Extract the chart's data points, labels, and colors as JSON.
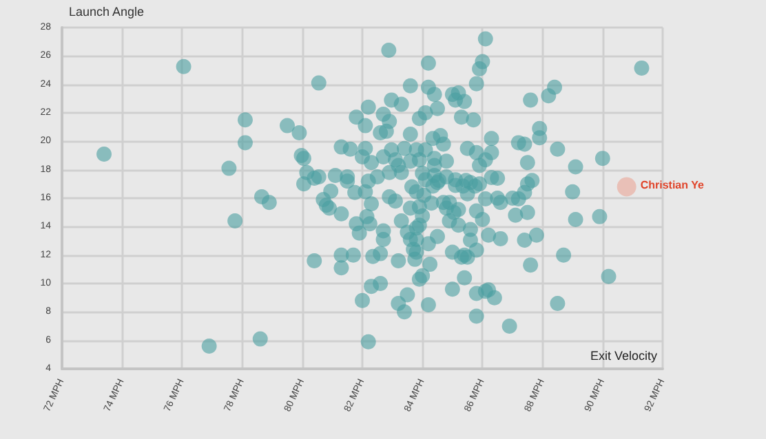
{
  "chart_data": {
    "type": "scatter",
    "xlabel": "Exit Velocity",
    "ylabel": "Launch Angle",
    "xlim": [
      72,
      92
    ],
    "ylim": [
      4,
      28
    ],
    "xticks": [
      {
        "value": 72,
        "label": "72 MPH"
      },
      {
        "value": 74,
        "label": "74 MPH"
      },
      {
        "value": 76,
        "label": "76 MPH"
      },
      {
        "value": 78,
        "label": "78 MPH"
      },
      {
        "value": 80,
        "label": "80 MPH"
      },
      {
        "value": 82,
        "label": "82 MPH"
      },
      {
        "value": 84,
        "label": "84 MPH"
      },
      {
        "value": 86,
        "label": "86 MPH"
      },
      {
        "value": 88,
        "label": "88 MPH"
      },
      {
        "value": 90,
        "label": "90 MPH"
      },
      {
        "value": 92,
        "label": "92 MPH"
      }
    ],
    "yticks": [
      4,
      6,
      8,
      10,
      12,
      14,
      16,
      18,
      20,
      22,
      24,
      26,
      28
    ],
    "grid": true,
    "marker": "circle",
    "annotations": [
      {
        "text": "Christian Ye",
        "x": 90.8,
        "y": 16.8
      }
    ],
    "series": [
      {
        "color": "#4a9fa0",
        "x": [
          73.4,
          76.05,
          77.56,
          77.76,
          78.1,
          78.1,
          76.9,
          78.6,
          78.65,
          78.9,
          79.5,
          79.9,
          79.97,
          80.05,
          80.05,
          80.15,
          80.4,
          80.55,
          80.55,
          80.7,
          80.8,
          80.9,
          80.4,
          81.3,
          81.3,
          81.3,
          80.95,
          81.1,
          81.3,
          82.88,
          86.1,
          84.2,
          86.0,
          85.9,
          85.8,
          83.6,
          84.2,
          84.4,
          85.0,
          85.2,
          85.1,
          85.4,
          82.97,
          83.3,
          82.2,
          81.8,
          82.1,
          82.7,
          82.9,
          82.6,
          82.8,
          83.9,
          84.1,
          84.5,
          85.3,
          85.7,
          83.6,
          84.35,
          84.6,
          84.7,
          81.6,
          82.1,
          82.0,
          82.3,
          82.97,
          83.4,
          83.8,
          84.1,
          82.7,
          83.1,
          83.6,
          83.9,
          84.4,
          84.8,
          85.5,
          85.8,
          86.3,
          86.3,
          86.1,
          85.9,
          87.2,
          87.4,
          87.9,
          87.9,
          87.6,
          88.2,
          88.4,
          88.5,
          87.5,
          89.1,
          90.0,
          91.3,
          89.0,
          82.9,
          83.2,
          83.3,
          82.5,
          81.5,
          81.5,
          82.2,
          84.0,
          84.4,
          84.1,
          84.4,
          84.55,
          84.8,
          85.1,
          85.45,
          85.6,
          85.9,
          86.3,
          86.5,
          87.65,
          87.5,
          83.65,
          83.8,
          84.35,
          84.5,
          81.75,
          82.1,
          82.9,
          83.1,
          84.05,
          84.7,
          85.1,
          85.35,
          85.5,
          85.75,
          86.1,
          86.5,
          86.6,
          87.0,
          87.2,
          87.4,
          82.3,
          84.3,
          84.9,
          84.8,
          83.9,
          83.6,
          85.2,
          87.1,
          87.5,
          89.9,
          89.1,
          85.8,
          81.8,
          82.15,
          82.25,
          81.9,
          82.7,
          82.7,
          83.3,
          83.5,
          83.6,
          83.8,
          84.0,
          83.9,
          83.8,
          83.7,
          83.8,
          83.75,
          84.2,
          84.5,
          84.9,
          85.2,
          85.05,
          85.6,
          85.6,
          85.8,
          85.5,
          85.3,
          85.0,
          85.4,
          86.0,
          86.2,
          86.6,
          87.4,
          87.8,
          81.7,
          82.35,
          82.6,
          83.2,
          84.25,
          84.0,
          83.9,
          85.4,
          87.6,
          88.7,
          90.2,
          82.6,
          82.3,
          82.0,
          83.2,
          83.5,
          83.4,
          84.2,
          85.0,
          85.8,
          86.1,
          86.2,
          86.4,
          85.8,
          86.9,
          88.5,
          82.2
        ],
        "values": [
          19.1,
          25.25,
          18.1,
          14.4,
          21.5,
          19.9,
          5.6,
          6.1,
          16.1,
          15.7,
          21.1,
          20.6,
          19.0,
          18.8,
          17.0,
          17.8,
          17.4,
          17.5,
          24.1,
          15.9,
          15.5,
          15.3,
          11.6,
          12.0,
          11.1,
          14.9,
          16.5,
          17.6,
          19.6,
          26.4,
          27.2,
          25.5,
          25.6,
          25.1,
          24.05,
          23.9,
          23.8,
          23.3,
          23.3,
          23.4,
          22.9,
          22.8,
          22.9,
          22.6,
          22.4,
          21.7,
          21.1,
          21.9,
          21.4,
          20.6,
          20.7,
          21.6,
          22.0,
          22.3,
          21.7,
          21.5,
          20.5,
          20.2,
          20.4,
          19.8,
          19.45,
          19.5,
          18.9,
          18.5,
          19.4,
          19.5,
          19.4,
          19.4,
          18.9,
          18.7,
          18.6,
          18.7,
          18.8,
          18.6,
          19.5,
          19.2,
          20.2,
          19.2,
          18.7,
          18.3,
          19.9,
          19.8,
          20.9,
          20.25,
          22.9,
          23.2,
          23.8,
          19.45,
          18.5,
          18.2,
          18.8,
          25.15,
          16.45,
          17.8,
          18.3,
          17.8,
          17.5,
          17.5,
          17.2,
          17.2,
          17.75,
          18.3,
          17.3,
          17.6,
          17.25,
          17.5,
          17.3,
          17.25,
          17.1,
          17.0,
          17.45,
          17.4,
          17.25,
          17.0,
          16.8,
          16.45,
          16.85,
          17.1,
          16.4,
          16.45,
          16.1,
          15.8,
          16.2,
          15.7,
          16.9,
          16.85,
          16.3,
          16.85,
          15.95,
          16.0,
          15.7,
          16.0,
          15.95,
          16.4,
          15.6,
          15.65,
          15.7,
          15.3,
          15.4,
          15.3,
          15.2,
          14.8,
          15.0,
          14.7,
          14.5,
          15.1,
          14.2,
          14.7,
          14.2,
          13.55,
          13.7,
          13.1,
          14.4,
          13.6,
          13.1,
          13.9,
          14.75,
          14.1,
          13.1,
          12.4,
          12.2,
          11.7,
          12.8,
          13.3,
          14.4,
          14.1,
          15.0,
          13.8,
          13.05,
          12.35,
          11.85,
          11.85,
          12.2,
          12.0,
          14.5,
          13.4,
          13.15,
          13.05,
          13.4,
          12.0,
          11.9,
          12.1,
          11.6,
          11.35,
          10.55,
          10.3,
          10.4,
          11.3,
          12.0,
          10.5,
          10.0,
          9.8,
          8.8,
          8.6,
          9.2,
          8.0,
          8.5,
          9.6,
          9.3,
          9.45,
          9.55,
          9.0,
          7.7,
          7.0,
          8.6,
          5.9
        ]
      },
      {
        "color": "#e9a596",
        "x": [
          90.8
        ],
        "values": [
          16.8
        ]
      }
    ]
  }
}
